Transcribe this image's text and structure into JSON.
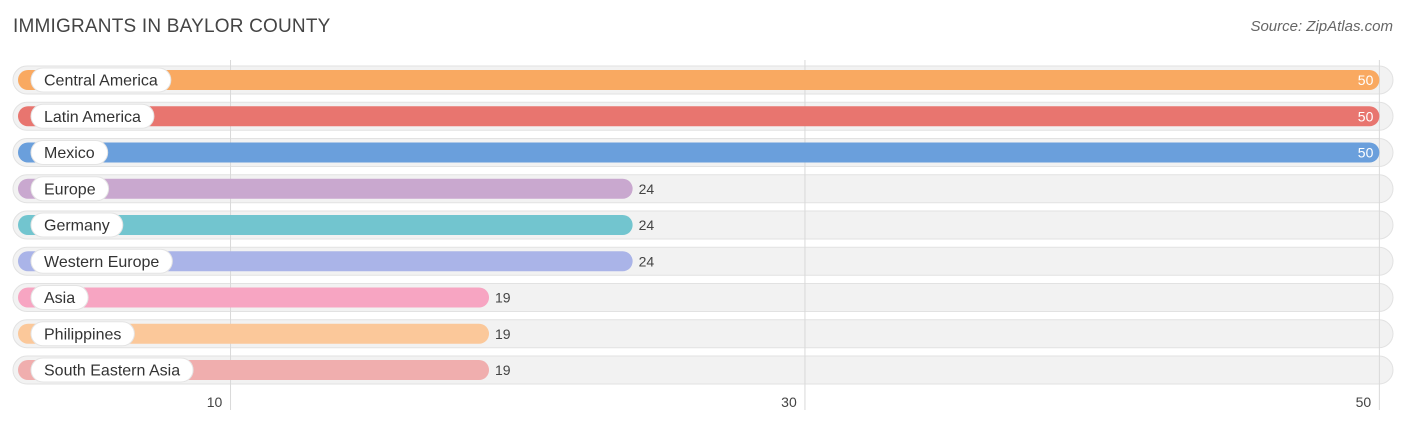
{
  "header": {
    "title": "IMMIGRANTS IN BAYLOR COUNTY",
    "source": "Source: ZipAtlas.com"
  },
  "chart_data": {
    "type": "bar",
    "orientation": "horizontal",
    "title": "IMMIGRANTS IN BAYLOR COUNTY",
    "categories": [
      "Central America",
      "Latin America",
      "Mexico",
      "Europe",
      "Germany",
      "Western Europe",
      "Asia",
      "Philippines",
      "South Eastern Asia"
    ],
    "values": [
      50,
      50,
      50,
      24,
      24,
      24,
      19,
      19,
      19
    ],
    "colors": [
      "#f9a961",
      "#e8756f",
      "#6a9fdc",
      "#c9a8cf",
      "#72c5cf",
      "#aab4e8",
      "#f7a5c2",
      "#fbc89a",
      "#f0aeae"
    ],
    "xticks": [
      10,
      30,
      50
    ],
    "xlim": [
      2.6,
      50.3
    ],
    "grid": true,
    "xlabel": "",
    "ylabel": ""
  }
}
